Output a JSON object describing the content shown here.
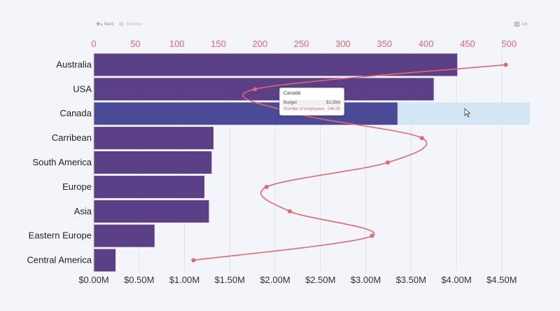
{
  "toolbar": {
    "back_label": "Back",
    "zoomout_label": "Zoomout",
    "lin_label": "Lin"
  },
  "colors": {
    "bar": "#5b3f87",
    "bar_hover": "#4a4a96",
    "hover_band": "#d4e6f6",
    "line": "#e8646e",
    "top_axis_text": "#e8646e",
    "bottom_axis_text": "#333333",
    "grid": "#dfe2ea"
  },
  "chart_data": {
    "type": "bar",
    "orientation": "horizontal",
    "categories": [
      "Australia",
      "USA",
      "Canada",
      "Carribean",
      "South America",
      "Europe",
      "Asia",
      "Eastern Europe",
      "Central America"
    ],
    "series": [
      {
        "axis": "bottom",
        "chart_type": "bar",
        "values": [
          4.01,
          3.75,
          3.35,
          1.32,
          1.3,
          1.22,
          1.27,
          0.67,
          0.24
        ]
      },
      {
        "axis": "top",
        "chart_type": "smooth-line",
        "values": [
          496,
          194,
          244,
          395,
          354,
          208,
          236,
          335,
          120
        ]
      }
    ],
    "bottom_axis": {
      "range": [
        0,
        4.5
      ],
      "ticks": [
        0,
        0.5,
        1,
        1.5,
        2,
        2.5,
        3,
        3.5,
        4,
        4.5
      ],
      "tick_labels": [
        "$0.00M",
        "$0.50M",
        "$1.00M",
        "$1.50M",
        "$2.00M",
        "$2.50M",
        "$3.00M",
        "$3.50M",
        "$4.00M",
        "$4.50M"
      ]
    },
    "top_axis": {
      "range": [
        0,
        520
      ],
      "ticks": [
        0,
        50,
        100,
        150,
        200,
        250,
        300,
        350,
        400,
        450,
        500
      ],
      "tick_labels": [
        "0",
        "50",
        "100",
        "150",
        "200",
        "250",
        "300",
        "350",
        "400",
        "450",
        "500"
      ]
    },
    "highlighted_category": "Canada",
    "grid": true,
    "legend": "none"
  },
  "tooltip": {
    "title": "Canada",
    "rows": [
      {
        "label": "Budget",
        "value": "$3.35M"
      },
      {
        "label": "Number of employees",
        "value": "244.00"
      }
    ]
  }
}
